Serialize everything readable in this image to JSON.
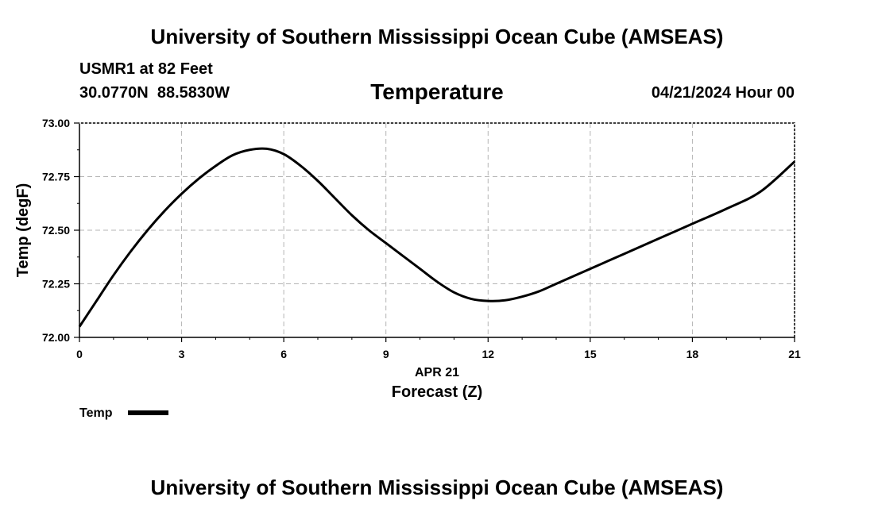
{
  "header": {
    "title": "University of Southern Mississippi Ocean Cube (AMSEAS)",
    "station": "USMR1 at 82 Feet",
    "coords": "30.0770N  88.5830W",
    "datetime": "04/21/2024 Hour 00"
  },
  "footer": {
    "title": "University of Southern Mississippi Ocean Cube (AMSEAS)"
  },
  "chart_data": {
    "type": "line",
    "title": "Temperature",
    "xlabel": "Forecast (Z)",
    "date_label": "APR 21",
    "ylabel": "Temp (degF)",
    "xlim": [
      0,
      21
    ],
    "ylim": [
      72.0,
      73.0
    ],
    "x_ticks": [
      0,
      3,
      6,
      9,
      12,
      15,
      18,
      21
    ],
    "x_tick_labels": [
      "0",
      "3",
      "6",
      "9",
      "12",
      "15",
      "18",
      "21"
    ],
    "y_ticks": [
      72.0,
      72.25,
      72.5,
      72.75,
      73.0
    ],
    "y_tick_labels": [
      "72.00",
      "72.25",
      "72.50",
      "72.75",
      "73.00"
    ],
    "grid": true,
    "legend": [
      {
        "label": "Temp",
        "color": "#000000"
      }
    ],
    "series": [
      {
        "name": "Temp",
        "color": "#000000",
        "x": [
          0,
          0.5,
          1,
          1.5,
          2,
          2.5,
          3,
          3.5,
          4,
          4.5,
          5,
          5.5,
          6,
          6.5,
          7,
          7.5,
          8,
          8.5,
          9,
          9.5,
          10,
          10.5,
          11,
          11.5,
          12,
          12.5,
          13,
          13.5,
          14,
          15,
          16,
          17,
          18,
          19,
          20,
          21
        ],
        "values": [
          72.05,
          72.17,
          72.29,
          72.4,
          72.5,
          72.59,
          72.67,
          72.74,
          72.8,
          72.85,
          72.875,
          72.88,
          72.855,
          72.8,
          72.73,
          72.65,
          72.57,
          72.5,
          72.44,
          72.38,
          72.32,
          72.26,
          72.21,
          72.18,
          72.17,
          72.173,
          72.19,
          72.215,
          72.25,
          72.32,
          72.39,
          72.46,
          72.53,
          72.6,
          72.68,
          72.82
        ]
      }
    ]
  }
}
